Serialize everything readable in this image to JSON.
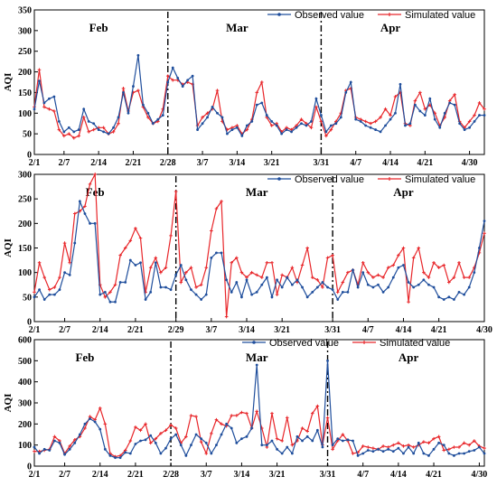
{
  "colors": {
    "observed": "#1f4e9c",
    "simulated": "#e8262a"
  },
  "chart_data": [
    {
      "type": "line",
      "ylabel": "AQI",
      "ylim": [
        0,
        350
      ],
      "yticks": [
        "0",
        "50",
        "100",
        "150",
        "200",
        "250",
        "300",
        "350"
      ],
      "xticks": [
        "2/1",
        "2/7",
        "2/14",
        "2/21",
        "2/28",
        "3/7",
        "3/14",
        "3/21",
        "3/31",
        "4/7",
        "4/14",
        "4/21",
        "4/30"
      ],
      "xtick_days": [
        1,
        7,
        14,
        21,
        28,
        35,
        42,
        49,
        59,
        66,
        73,
        80,
        89
      ],
      "dividers": [
        28,
        59
      ],
      "months": [
        {
          "label": "Feb",
          "day": 14
        },
        {
          "label": "Mar",
          "day": 42
        },
        {
          "label": "Apr",
          "day": 73
        }
      ],
      "legend": "top-right",
      "series": [
        {
          "name": "Observed value",
          "values": [
            110,
            178,
            125,
            135,
            140,
            80,
            55,
            65,
            55,
            60,
            110,
            80,
            75,
            60,
            55,
            50,
            65,
            90,
            150,
            100,
            165,
            240,
            120,
            100,
            75,
            85,
            95,
            175,
            210,
            185,
            165,
            180,
            190,
            60,
            75,
            90,
            115,
            100,
            90,
            50,
            60,
            65,
            45,
            70,
            80,
            120,
            125,
            95,
            80,
            70,
            50,
            60,
            55,
            65,
            75,
            70,
            80,
            135,
            95,
            55,
            70,
            75,
            90,
            150,
            175,
            85,
            80,
            70,
            65,
            60,
            55,
            70,
            85,
            100,
            170,
            70,
            75,
            120,
            105,
            95,
            135,
            85,
            65,
            100,
            125,
            120,
            75,
            60,
            65,
            80,
            95,
            95
          ]
        },
        {
          "name": "Simulated value",
          "values": [
            115,
            205,
            115,
            110,
            105,
            60,
            45,
            50,
            40,
            45,
            90,
            55,
            60,
            65,
            65,
            50,
            55,
            75,
            160,
            105,
            150,
            155,
            115,
            90,
            75,
            80,
            110,
            190,
            180,
            180,
            170,
            175,
            170,
            70,
            90,
            100,
            110,
            155,
            80,
            60,
            65,
            70,
            50,
            60,
            85,
            150,
            175,
            90,
            70,
            75,
            55,
            65,
            60,
            70,
            85,
            75,
            65,
            115,
            80,
            45,
            60,
            80,
            100,
            155,
            160,
            90,
            85,
            80,
            75,
            80,
            90,
            110,
            95,
            140,
            150,
            75,
            70,
            130,
            150,
            110,
            120,
            100,
            70,
            90,
            130,
            145,
            80,
            65,
            80,
            95,
            125,
            110
          ]
        }
      ]
    },
    {
      "type": "line",
      "ylabel": "AQI",
      "ylim": [
        0,
        300
      ],
      "yticks": [
        "0",
        "50",
        "100",
        "150",
        "200",
        "250",
        "300"
      ],
      "xticks": [
        "2/1",
        "2/7",
        "2/14",
        "2/21",
        "2/29",
        "3/7",
        "3/14",
        "3/21",
        "3/31",
        "4/7",
        "4/14",
        "4/21",
        "4/30"
      ],
      "xtick_days": [
        1,
        7,
        14,
        21,
        29,
        36,
        43,
        50,
        60,
        67,
        74,
        81,
        90
      ],
      "dividers": [
        29,
        60
      ],
      "months": [
        {
          "label": "Feb",
          "day": 13
        },
        {
          "label": "Mar",
          "day": 45
        },
        {
          "label": "Apr",
          "day": 74
        }
      ],
      "legend": "top-right",
      "series": [
        {
          "name": "Observed value",
          "values": [
            50,
            65,
            45,
            55,
            55,
            65,
            100,
            95,
            160,
            245,
            220,
            200,
            200,
            55,
            60,
            40,
            40,
            80,
            80,
            125,
            115,
            120,
            45,
            60,
            120,
            70,
            70,
            65,
            95,
            115,
            85,
            65,
            55,
            45,
            55,
            130,
            140,
            140,
            85,
            60,
            80,
            50,
            85,
            55,
            60,
            75,
            90,
            50,
            85,
            70,
            90,
            75,
            85,
            70,
            50,
            60,
            70,
            80,
            70,
            65,
            45,
            60,
            60,
            105,
            70,
            100,
            75,
            70,
            75,
            60,
            70,
            90,
            110,
            115,
            80,
            70,
            75,
            85,
            75,
            70,
            50,
            45,
            50,
            45,
            60,
            55,
            70,
            100,
            150,
            205
          ]
        },
        {
          "name": "Simulated value",
          "values": [
            60,
            120,
            90,
            65,
            70,
            90,
            160,
            120,
            220,
            225,
            235,
            280,
            300,
            75,
            50,
            60,
            75,
            135,
            150,
            165,
            190,
            170,
            60,
            110,
            130,
            100,
            110,
            175,
            265,
            80,
            100,
            110,
            70,
            75,
            110,
            185,
            230,
            245,
            10,
            120,
            130,
            100,
            90,
            100,
            95,
            90,
            120,
            120,
            55,
            95,
            90,
            110,
            80,
            115,
            150,
            90,
            85,
            70,
            130,
            135,
            60,
            80,
            100,
            105,
            75,
            120,
            100,
            90,
            95,
            90,
            110,
            115,
            135,
            150,
            40,
            130,
            150,
            100,
            90,
            120,
            110,
            115,
            80,
            90,
            120,
            90,
            90,
            110,
            140,
            180
          ]
        }
      ]
    },
    {
      "type": "line",
      "ylabel": "AQI",
      "ylim": [
        0,
        600
      ],
      "yticks": [
        "0",
        "100",
        "200",
        "300",
        "400",
        "500",
        "600"
      ],
      "xticks": [
        "2/1",
        "2/7",
        "2/14",
        "2/21",
        "2/28",
        "3/7",
        "3/14",
        "3/21",
        "3/31",
        "4/7",
        "4/14",
        "4/21",
        "4/30"
      ],
      "xtick_days": [
        1,
        7,
        14,
        21,
        28,
        35,
        42,
        49,
        59,
        66,
        73,
        80,
        89
      ],
      "dividers": [
        28,
        59
      ],
      "months": [
        {
          "label": "Feb",
          "day": 11
        },
        {
          "label": "Mar",
          "day": 45
        },
        {
          "label": "Apr",
          "day": 75
        }
      ],
      "legend": "top-center",
      "series": [
        {
          "name": "Observed value",
          "values": [
            90,
            60,
            80,
            75,
            120,
            110,
            55,
            80,
            110,
            150,
            200,
            225,
            210,
            175,
            80,
            50,
            40,
            40,
            65,
            60,
            105,
            120,
            125,
            145,
            110,
            60,
            85,
            130,
            150,
            100,
            50,
            100,
            150,
            130,
            110,
            60,
            100,
            150,
            200,
            180,
            110,
            130,
            140,
            180,
            480,
            100,
            100,
            120,
            80,
            60,
            90,
            60,
            140,
            120,
            140,
            120,
            170,
            90,
            500,
            100,
            130,
            120,
            125,
            120,
            50,
            60,
            75,
            70,
            80,
            70,
            80,
            70,
            85,
            60,
            90,
            60,
            110,
            60,
            50,
            80,
            110,
            100,
            60,
            50,
            60,
            60,
            70,
            75,
            90,
            60
          ]
        },
        {
          "name": "Simulated value",
          "values": [
            70,
            70,
            75,
            80,
            140,
            120,
            60,
            95,
            125,
            140,
            180,
            235,
            220,
            275,
            200,
            60,
            45,
            50,
            75,
            120,
            185,
            170,
            200,
            110,
            130,
            155,
            170,
            195,
            180,
            110,
            140,
            240,
            235,
            115,
            60,
            155,
            220,
            200,
            190,
            240,
            240,
            255,
            250,
            180,
            260,
            180,
            90,
            250,
            130,
            120,
            230,
            100,
            120,
            180,
            165,
            250,
            285,
            100,
            230,
            80,
            120,
            150,
            120,
            60,
            65,
            95,
            90,
            85,
            80,
            95,
            90,
            100,
            110,
            95,
            100,
            90,
            100,
            115,
            110,
            130,
            140,
            75,
            80,
            90,
            90,
            110,
            100,
            120,
            95,
            85
          ]
        }
      ]
    }
  ]
}
